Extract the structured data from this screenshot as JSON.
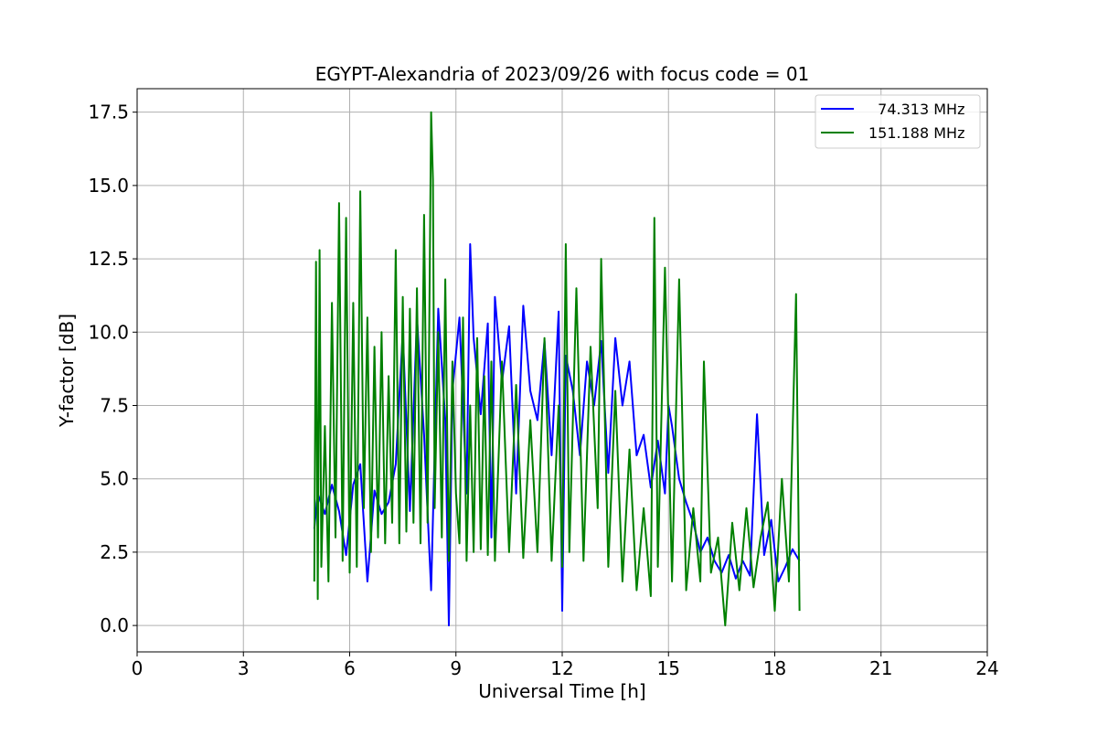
{
  "chart_data": {
    "type": "line",
    "title": "EGYPT-Alexandria of 2023/09/26 with focus code = 01",
    "xlabel": "Universal Time [h]",
    "ylabel": "Y-factor [dB]",
    "xlim": [
      0,
      24
    ],
    "ylim": [
      -0.9,
      18.3
    ],
    "xticks": [
      0,
      3,
      6,
      9,
      12,
      15,
      18,
      21,
      24
    ],
    "xtick_labels": [
      "0",
      "3",
      "6",
      "9",
      "12",
      "15",
      "18",
      "21",
      "24"
    ],
    "yticks": [
      0.0,
      2.5,
      5.0,
      7.5,
      10.0,
      12.5,
      15.0,
      17.5
    ],
    "ytick_labels": [
      "0.0",
      "2.5",
      "5.0",
      "7.5",
      "10.0",
      "12.5",
      "15.0",
      "17.5"
    ],
    "grid": true,
    "legend_position": "top-right",
    "series": [
      {
        "name": "  74.313 MHz",
        "color": "#0000ff",
        "x": [
          5.0,
          5.1,
          5.3,
          5.5,
          5.7,
          5.9,
          6.1,
          6.3,
          6.5,
          6.7,
          6.9,
          7.1,
          7.3,
          7.5,
          7.7,
          7.9,
          8.1,
          8.3,
          8.5,
          8.7,
          8.8,
          8.9,
          9.1,
          9.3,
          9.4,
          9.5,
          9.7,
          9.9,
          10.0,
          10.1,
          10.3,
          10.5,
          10.7,
          10.9,
          11.1,
          11.3,
          11.5,
          11.7,
          11.9,
          12.0,
          12.1,
          12.3,
          12.5,
          12.7,
          12.9,
          13.1,
          13.3,
          13.5,
          13.7,
          13.9,
          14.1,
          14.3,
          14.5,
          14.7,
          14.9,
          15.0,
          15.1,
          15.3,
          15.5,
          15.7,
          15.9,
          16.1,
          16.3,
          16.5,
          16.7,
          16.9,
          17.1,
          17.3,
          17.5,
          17.7,
          17.9,
          18.1,
          18.3,
          18.5,
          18.7
        ],
        "y": [
          3.3,
          4.5,
          3.8,
          4.8,
          3.9,
          2.4,
          4.8,
          5.5,
          1.5,
          4.6,
          3.8,
          4.2,
          5.5,
          10.0,
          3.9,
          10.5,
          6.5,
          1.2,
          10.8,
          7.0,
          0.0,
          8.0,
          10.5,
          4.5,
          13.0,
          9.8,
          7.2,
          10.3,
          3.0,
          11.2,
          8.3,
          10.2,
          4.5,
          10.9,
          8.0,
          7.0,
          9.7,
          5.8,
          10.7,
          0.5,
          9.2,
          8.0,
          5.8,
          9.0,
          7.5,
          9.7,
          5.2,
          9.8,
          7.5,
          9.0,
          5.8,
          6.5,
          4.7,
          6.3,
          4.5,
          7.5,
          6.8,
          5.0,
          4.2,
          3.5,
          2.5,
          3.0,
          2.2,
          1.8,
          2.4,
          1.6,
          2.2,
          1.7,
          7.2,
          2.4,
          3.6,
          1.5,
          2.0,
          2.6,
          2.2
        ]
      },
      {
        "name": "151.188 MHz",
        "color": "#008000",
        "x": [
          5.0,
          5.05,
          5.1,
          5.15,
          5.2,
          5.3,
          5.4,
          5.5,
          5.6,
          5.7,
          5.8,
          5.9,
          6.0,
          6.1,
          6.2,
          6.3,
          6.4,
          6.5,
          6.6,
          6.7,
          6.8,
          6.9,
          7.0,
          7.1,
          7.2,
          7.3,
          7.4,
          7.5,
          7.6,
          7.7,
          7.8,
          7.9,
          8.0,
          8.1,
          8.2,
          8.3,
          8.35,
          8.4,
          8.5,
          8.6,
          8.7,
          8.8,
          8.9,
          9.0,
          9.1,
          9.2,
          9.3,
          9.4,
          9.5,
          9.6,
          9.7,
          9.8,
          9.9,
          10.0,
          10.1,
          10.3,
          10.5,
          10.7,
          10.9,
          11.1,
          11.3,
          11.5,
          11.7,
          11.9,
          12.0,
          12.1,
          12.2,
          12.4,
          12.6,
          12.8,
          13.0,
          13.1,
          13.3,
          13.5,
          13.7,
          13.9,
          14.1,
          14.3,
          14.5,
          14.6,
          14.7,
          14.9,
          15.1,
          15.3,
          15.5,
          15.7,
          15.9,
          16.0,
          16.2,
          16.4,
          16.6,
          16.8,
          17.0,
          17.2,
          17.4,
          17.6,
          17.8,
          18.0,
          18.2,
          18.4,
          18.6,
          18.7
        ],
        "y": [
          1.5,
          12.4,
          0.9,
          12.8,
          2.0,
          6.8,
          1.5,
          11.0,
          3.0,
          14.4,
          2.2,
          13.9,
          1.8,
          11.0,
          2.0,
          14.8,
          4.0,
          10.5,
          2.5,
          9.5,
          3.0,
          10.0,
          2.8,
          8.5,
          3.5,
          12.8,
          2.8,
          11.2,
          3.2,
          10.8,
          3.5,
          11.5,
          2.8,
          14.0,
          3.5,
          17.5,
          15.2,
          4.0,
          10.0,
          3.0,
          11.8,
          2.2,
          9.0,
          4.5,
          2.8,
          10.5,
          2.2,
          7.5,
          2.5,
          9.8,
          2.6,
          8.5,
          2.4,
          9.0,
          2.2,
          9.0,
          2.5,
          8.2,
          2.3,
          7.0,
          2.5,
          9.8,
          2.2,
          7.5,
          2.0,
          13.0,
          2.5,
          11.5,
          2.2,
          9.5,
          4.0,
          12.5,
          2.0,
          8.0,
          1.5,
          6.0,
          1.2,
          4.0,
          1.0,
          13.9,
          2.0,
          12.2,
          1.5,
          11.8,
          1.2,
          4.0,
          1.5,
          9.0,
          1.8,
          3.0,
          0.0,
          3.5,
          1.2,
          4.0,
          1.3,
          3.0,
          4.2,
          0.5,
          5.0,
          1.5,
          11.3,
          0.5
        ]
      }
    ]
  }
}
